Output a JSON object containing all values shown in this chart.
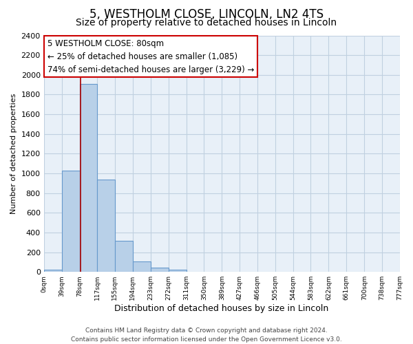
{
  "title": "5, WESTHOLM CLOSE, LINCOLN, LN2 4TS",
  "subtitle": "Size of property relative to detached houses in Lincoln",
  "xlabel": "Distribution of detached houses by size in Lincoln",
  "ylabel": "Number of detached properties",
  "bin_edges": [
    0,
    39,
    78,
    117,
    155,
    194,
    233,
    272,
    311,
    350,
    389,
    427,
    466,
    505,
    544,
    583,
    622,
    661,
    700,
    738,
    777
  ],
  "bar_heights": [
    20,
    1025,
    1910,
    935,
    315,
    105,
    45,
    20,
    0,
    0,
    0,
    0,
    0,
    0,
    0,
    0,
    0,
    0,
    0,
    0
  ],
  "bar_color": "#b8d0e8",
  "bar_edge_color": "#6699cc",
  "vline_x": 80,
  "vline_color": "#aa0000",
  "ylim": [
    0,
    2400
  ],
  "yticks": [
    0,
    200,
    400,
    600,
    800,
    1000,
    1200,
    1400,
    1600,
    1800,
    2000,
    2200,
    2400
  ],
  "tick_labels": [
    "0sqm",
    "39sqm",
    "78sqm",
    "117sqm",
    "155sqm",
    "194sqm",
    "233sqm",
    "272sqm",
    "311sqm",
    "350sqm",
    "389sqm",
    "427sqm",
    "466sqm",
    "505sqm",
    "544sqm",
    "583sqm",
    "622sqm",
    "661sqm",
    "700sqm",
    "738sqm",
    "777sqm"
  ],
  "annotation_line1": "5 WESTHOLM CLOSE: 80sqm",
  "annotation_line2": "← 25% of detached houses are smaller (1,085)",
  "annotation_line3": "74% of semi-detached houses are larger (3,229) →",
  "box_edge_color": "#cc0000",
  "grid_color": "#c0d0e0",
  "background_color": "#e8f0f8",
  "footer_line1": "Contains HM Land Registry data © Crown copyright and database right 2024.",
  "footer_line2": "Contains public sector information licensed under the Open Government Licence v3.0.",
  "title_fontsize": 12,
  "subtitle_fontsize": 10,
  "xlabel_fontsize": 9,
  "ylabel_fontsize": 8,
  "annotation_fontsize": 8.5,
  "footer_fontsize": 6.5,
  "ytick_fontsize": 8,
  "xtick_fontsize": 6.5
}
